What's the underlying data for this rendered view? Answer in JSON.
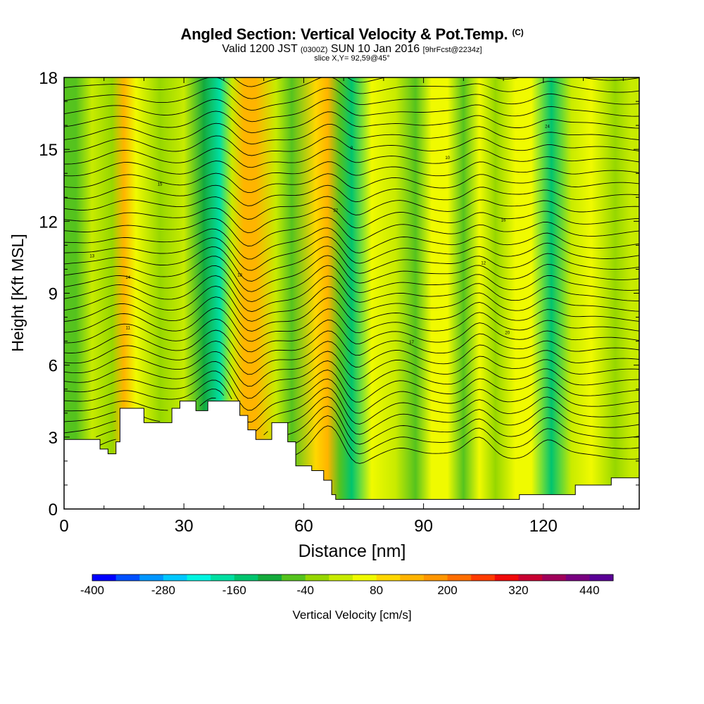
{
  "title": {
    "main": "Angled Section: Vertical Velocity & Pot.Temp.",
    "main_unit": "(C)",
    "valid_prefix": "Valid 1200 JST",
    "valid_z": "(0300Z)",
    "valid_date": "SUN 10 Jan 2016",
    "valid_fcst": "[9hrFcst@2234z]",
    "slice": "slice X,Y= 92,59@45°"
  },
  "chart_data": {
    "type": "heatmap",
    "xlabel": "Distance [nm]",
    "ylabel": "Height [Kft MSL]",
    "xlim": [
      0,
      144
    ],
    "ylim": [
      0,
      18
    ],
    "x_ticks": [
      "0",
      "30",
      "60",
      "90",
      "120"
    ],
    "y_ticks": [
      "0",
      "3",
      "6",
      "9",
      "12",
      "15",
      "18"
    ],
    "colorbar": {
      "title": "Vertical Velocity [cm/s]",
      "range": [
        -400,
        480
      ],
      "tick_labels": [
        "-400",
        "-280",
        "-160",
        "-40",
        "80",
        "200",
        "320",
        "440"
      ],
      "colors": [
        "#0000ff",
        "#0050ff",
        "#0096ff",
        "#00c8ff",
        "#00f5e1",
        "#00dfa2",
        "#00c46e",
        "#14aa3c",
        "#55c31e",
        "#96d700",
        "#c8eb00",
        "#f0fa00",
        "#ffd700",
        "#ffb400",
        "#ff9600",
        "#ff6e00",
        "#ff3c00",
        "#f00a0a",
        "#c80032",
        "#a0005a",
        "#780080",
        "#5a0096"
      ]
    },
    "vertical_velocity_bands": [
      {
        "x": 3,
        "w": -50
      },
      {
        "x": 7,
        "w": 20
      },
      {
        "x": 12,
        "w": -30
      },
      {
        "x": 15,
        "w": 120
      },
      {
        "x": 18,
        "w": 60
      },
      {
        "x": 24,
        "w": -40
      },
      {
        "x": 30,
        "w": 10
      },
      {
        "x": 35,
        "w": -120
      },
      {
        "x": 39,
        "w": -200
      },
      {
        "x": 42,
        "w": 20
      },
      {
        "x": 45,
        "w": 140
      },
      {
        "x": 48,
        "w": 120
      },
      {
        "x": 53,
        "w": 0
      },
      {
        "x": 57,
        "w": -60
      },
      {
        "x": 63,
        "w": 80
      },
      {
        "x": 66,
        "w": 130
      },
      {
        "x": 69,
        "w": -80
      },
      {
        "x": 72,
        "w": -140
      },
      {
        "x": 77,
        "w": 70
      },
      {
        "x": 83,
        "w": 20
      },
      {
        "x": 88,
        "w": -60
      },
      {
        "x": 92,
        "w": 70
      },
      {
        "x": 96,
        "w": 40
      },
      {
        "x": 100,
        "w": -60
      },
      {
        "x": 104,
        "w": 60
      },
      {
        "x": 108,
        "w": -20
      },
      {
        "x": 113,
        "w": 40
      },
      {
        "x": 117,
        "w": 70
      },
      {
        "x": 122,
        "w": -130
      },
      {
        "x": 127,
        "w": 20
      },
      {
        "x": 132,
        "w": 60
      },
      {
        "x": 138,
        "w": -30
      },
      {
        "x": 142,
        "w": 10
      }
    ],
    "terrain_height_kft": [
      [
        0,
        2.9
      ],
      [
        5,
        2.9
      ],
      [
        9,
        2.5
      ],
      [
        11,
        2.3
      ],
      [
        13,
        2.8
      ],
      [
        14,
        4.2
      ],
      [
        17,
        4.2
      ],
      [
        20,
        3.6
      ],
      [
        24,
        3.6
      ],
      [
        27,
        4.2
      ],
      [
        29,
        4.5
      ],
      [
        33,
        4.1
      ],
      [
        36,
        4.5
      ],
      [
        41,
        4.5
      ],
      [
        44,
        3.9
      ],
      [
        46,
        3.3
      ],
      [
        48,
        2.9
      ],
      [
        52,
        3.6
      ],
      [
        56,
        2.8
      ],
      [
        58,
        1.8
      ],
      [
        62,
        1.6
      ],
      [
        65,
        1.2
      ],
      [
        67,
        0.6
      ],
      [
        68,
        0.4
      ],
      [
        112,
        0.4
      ],
      [
        114,
        0.6
      ],
      [
        128,
        1.0
      ],
      [
        137,
        1.3
      ],
      [
        144,
        1.3
      ]
    ],
    "potential_temperature_contours": {
      "interval_C": 1,
      "count": 38
    },
    "contour_labels": [
      "13",
      "14",
      "11",
      "15",
      "18",
      "22",
      "9",
      "10",
      "12",
      "16",
      "20",
      "24",
      "17"
    ]
  }
}
